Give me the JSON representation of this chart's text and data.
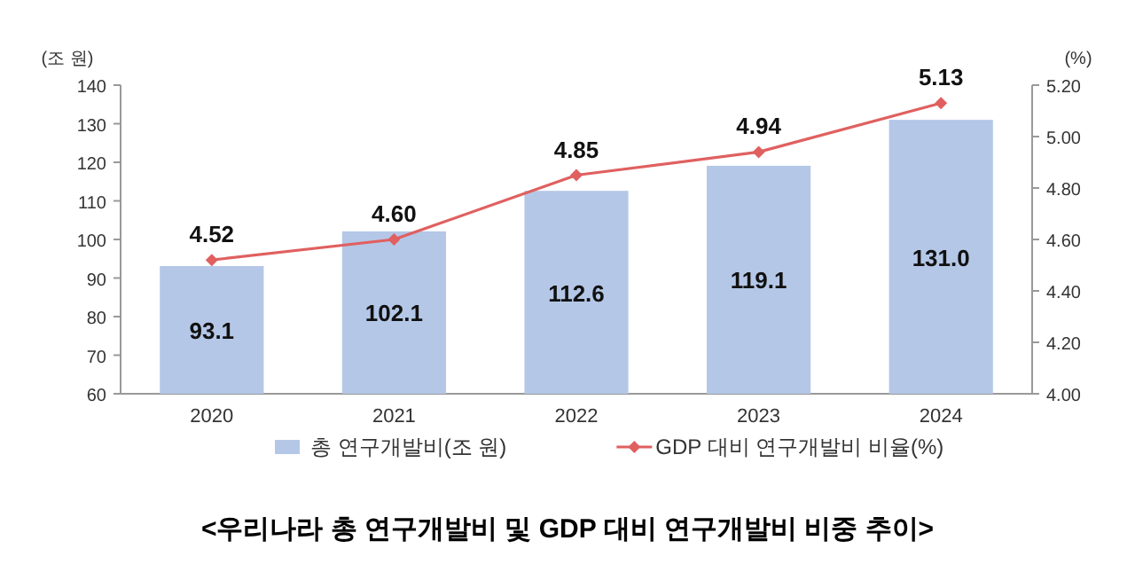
{
  "chart_data": {
    "type": "bar",
    "title": "<우리나라 총 연구개발비 및 GDP 대비 연구개발비 비중 추이>",
    "ylabel": "(조 원)",
    "y2label": "(%)",
    "categories": [
      "2020",
      "2021",
      "2022",
      "2023",
      "2024"
    ],
    "series": [
      {
        "name": "총 연구개발비(조 원)",
        "color": "#b4c7e7",
        "values": [
          93.1,
          102.1,
          112.6,
          119.1,
          131.0
        ],
        "value_labels": [
          "93.1",
          "102.1",
          "112.6",
          "119.1",
          "131.0"
        ]
      },
      {
        "name": "GDP 대비 연구개발비 비율(%)",
        "type": "line",
        "axis": "y2",
        "color": "#e06060",
        "marker": "diamond",
        "values": [
          4.52,
          4.6,
          4.85,
          4.94,
          5.13
        ],
        "value_labels": [
          "4.52",
          "4.60",
          "4.85",
          "4.94",
          "5.13"
        ]
      }
    ],
    "ylim": [
      60,
      140
    ],
    "yticks": [
      60,
      70,
      80,
      90,
      100,
      110,
      120,
      130,
      140
    ],
    "y2lim": [
      4.0,
      5.2
    ],
    "y2ticks": [
      {
        "value": 4.0,
        "label": "4.00"
      },
      {
        "value": 4.2,
        "label": "4.20"
      },
      {
        "value": 4.4,
        "label": "4.40"
      },
      {
        "value": 4.6,
        "label": "4.60"
      },
      {
        "value": 4.8,
        "label": "4.80"
      },
      {
        "value": 5.0,
        "label": "5.00"
      },
      {
        "value": 5.2,
        "label": "5.20"
      }
    ],
    "legend": "bottom",
    "grid": false
  }
}
